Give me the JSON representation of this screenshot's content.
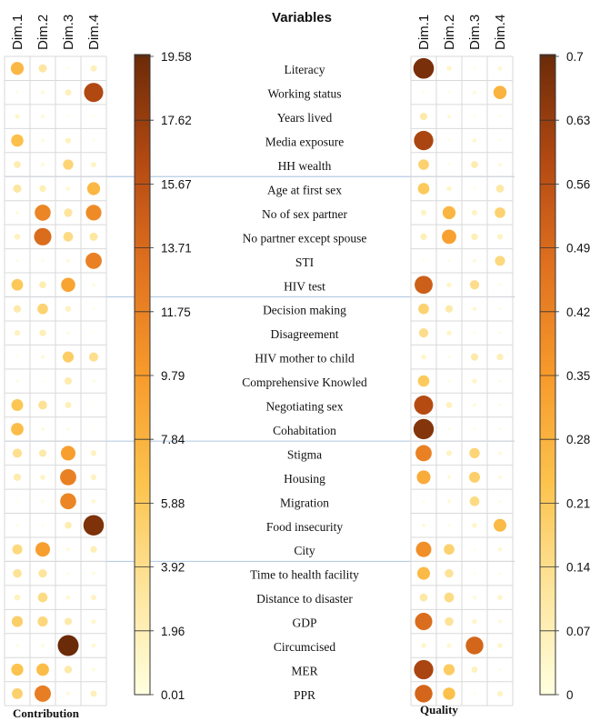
{
  "chart_data": [
    {
      "type": "heatmap",
      "title": "Variables",
      "panel_label": "Contribution",
      "columns": [
        "Dim.1",
        "Dim.2",
        "Dim.3",
        "Dim.4"
      ],
      "rows": [
        "Literacy",
        "Working status",
        "Years lived",
        "Media exposure",
        "HH wealth",
        "Age at first sex",
        "No of sex partner",
        "No partner except spouse",
        "STI",
        "HIV test",
        "Decision making",
        "Disagreement",
        "HIV mother to child",
        "Comprehensive Knowled",
        "Negotiating sex",
        "Cohabitation",
        "Stigma",
        "Housing",
        "Migration",
        "Food insecurity",
        "City",
        "Time to health facility",
        "Distance to disaster",
        "GDP",
        "Circumcised",
        "MER",
        "PPR"
      ],
      "values": [
        [
          7.5,
          3.0,
          0.3,
          1.8
        ],
        [
          0.3,
          0.6,
          1.8,
          16.5
        ],
        [
          1.0,
          0.6,
          0.2,
          0.1
        ],
        [
          6.8,
          0.5,
          1.5,
          0.3
        ],
        [
          2.2,
          0.6,
          4.8,
          1.3
        ],
        [
          3.0,
          2.0,
          0.8,
          7.5
        ],
        [
          0.5,
          11.5,
          3.2,
          11.0
        ],
        [
          1.6,
          13.5,
          4.2,
          3.0
        ],
        [
          0.3,
          0.3,
          0.6,
          11.8
        ],
        [
          6.0,
          2.2,
          9.0,
          0.5
        ],
        [
          2.5,
          5.0,
          1.5,
          0.3
        ],
        [
          1.5,
          2.0,
          0.4,
          0.2
        ],
        [
          0.2,
          0.6,
          5.5,
          3.8
        ],
        [
          0.3,
          0.2,
          2.4,
          0.4
        ],
        [
          6.2,
          3.5,
          1.8,
          0.2
        ],
        [
          7.0,
          0.5,
          0.4,
          0.1
        ],
        [
          3.8,
          2.5,
          9.5,
          1.5
        ],
        [
          2.4,
          1.2,
          11.8,
          1.5
        ],
        [
          0.2,
          0.4,
          11.5,
          0.8
        ],
        [
          0.3,
          0.3,
          2.2,
          18.8
        ],
        [
          4.5,
          9.5,
          0.6,
          2.0
        ],
        [
          3.4,
          3.2,
          0.3,
          0.5
        ],
        [
          1.6,
          4.2,
          0.8,
          1.4
        ],
        [
          5.4,
          4.6,
          2.5,
          1.0
        ],
        [
          0.4,
          0.5,
          19.58,
          0.8
        ],
        [
          6.5,
          7.0,
          2.6,
          0.5
        ],
        [
          5.2,
          12.0,
          0.6,
          1.8
        ]
      ],
      "colorbar": {
        "min": 0.01,
        "max": 19.58,
        "ticks": [
          "19.58",
          "17.62",
          "15.67",
          "13.71",
          "11.75",
          "9.79",
          "7.84",
          "5.88",
          "3.92",
          "1.96",
          "0.01"
        ]
      }
    },
    {
      "type": "heatmap",
      "panel_label": "Quality",
      "columns": [
        "Dim.1",
        "Dim.2",
        "Dim.3",
        "Dim.4"
      ],
      "rows": [
        "Literacy",
        "Working status",
        "Years lived",
        "Media exposure",
        "HH wealth",
        "Age at first sex",
        "No of sex partner",
        "No partner except spouse",
        "STI",
        "HIV test",
        "Decision making",
        "Disagreement",
        "HIV mother to child",
        "Comprehensive Knowled",
        "Negotiating sex",
        "Cohabitation",
        "Stigma",
        "Housing",
        "Migration",
        "Food insecurity",
        "City",
        "Time to health facility",
        "Distance to disaster",
        "GDP",
        "Circumcised",
        "MER",
        "PPR"
      ],
      "values": [
        [
          0.68,
          0.04,
          0.01,
          0.03
        ],
        [
          0.01,
          0.01,
          0.02,
          0.28
        ],
        [
          0.09,
          0.02,
          0.01,
          0.01
        ],
        [
          0.6,
          0.01,
          0.03,
          0.01
        ],
        [
          0.18,
          0.01,
          0.08,
          0.02
        ],
        [
          0.21,
          0.04,
          0.01,
          0.1
        ],
        [
          0.05,
          0.27,
          0.05,
          0.18
        ],
        [
          0.07,
          0.33,
          0.07,
          0.05
        ],
        [
          0.01,
          0.01,
          0.02,
          0.16
        ],
        [
          0.52,
          0.04,
          0.14,
          0.01
        ],
        [
          0.18,
          0.09,
          0.03,
          0.01
        ],
        [
          0.14,
          0.04,
          0.01,
          0.01
        ],
        [
          0.04,
          0.01,
          0.09,
          0.07
        ],
        [
          0.21,
          0.01,
          0.04,
          0.01
        ],
        [
          0.58,
          0.06,
          0.02,
          0.01
        ],
        [
          0.66,
          0.01,
          0.01,
          0.01
        ],
        [
          0.42,
          0.05,
          0.17,
          0.02
        ],
        [
          0.3,
          0.02,
          0.19,
          0.02
        ],
        [
          0.01,
          0.02,
          0.15,
          0.01
        ],
        [
          0.02,
          0.01,
          0.04,
          0.26
        ],
        [
          0.38,
          0.18,
          0.01,
          0.03
        ],
        [
          0.26,
          0.12,
          0.01,
          0.01
        ],
        [
          0.1,
          0.15,
          0.02,
          0.04
        ],
        [
          0.48,
          0.12,
          0.04,
          0.02
        ],
        [
          0.04,
          0.03,
          0.5,
          0.04
        ],
        [
          0.6,
          0.2,
          0.06,
          0.01
        ],
        [
          0.5,
          0.24,
          0.01,
          0.05
        ]
      ],
      "colorbar": {
        "min": 0,
        "max": 0.7,
        "ticks": [
          "0.7",
          "0.63",
          "0.56",
          "0.49",
          "0.42",
          "0.35",
          "0.28",
          "0.21",
          "0.14",
          "0.07",
          "0"
        ]
      }
    }
  ],
  "colors": {
    "scale": [
      "#ffffe0",
      "#fde49a",
      "#fcc34d",
      "#f79a2b",
      "#e0711f",
      "#b54a12",
      "#6b2a08"
    ],
    "grid": "#d9d9d9",
    "separator": "#b8cce4"
  }
}
